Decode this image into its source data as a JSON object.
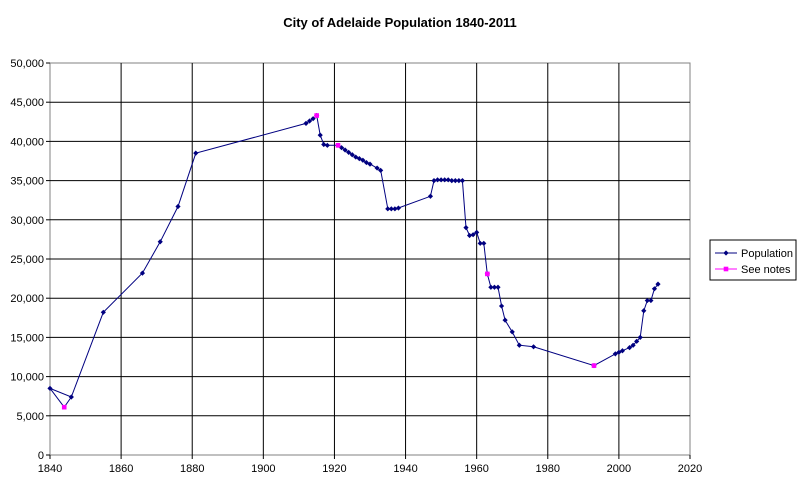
{
  "chart_data": {
    "type": "line",
    "title": "City of Adelaide Population 1840-2011",
    "xlabel": "",
    "ylabel": "",
    "xlim": [
      1840,
      2020
    ],
    "ylim": [
      0,
      50000
    ],
    "x_ticks": [
      1840,
      1860,
      1880,
      1900,
      1920,
      1940,
      1960,
      1980,
      2000,
      2020
    ],
    "x_tick_labels": [
      "1840",
      "1860",
      "1880",
      "1900",
      "1920",
      "1940",
      "1960",
      "1980",
      "2000",
      "2020"
    ],
    "y_ticks": [
      0,
      5000,
      10000,
      15000,
      20000,
      25000,
      30000,
      35000,
      40000,
      45000,
      50000
    ],
    "y_tick_labels": [
      "0",
      "5,000",
      "10,000",
      "15,000",
      "20,000",
      "25,000",
      "30,000",
      "35,000",
      "40,000",
      "45,000",
      "50,000"
    ],
    "grid": true,
    "legend_position": "right",
    "series": [
      {
        "name": "Population",
        "color": "#000080",
        "marker": "diamond",
        "points": [
          [
            1840,
            8500
          ],
          [
            1846,
            7400
          ],
          [
            1855,
            18200
          ],
          [
            1866,
            23200
          ],
          [
            1871,
            27200
          ],
          [
            1876,
            31700
          ],
          [
            1881,
            38500
          ],
          [
            1912,
            42300
          ],
          [
            1913,
            42600
          ],
          [
            1914,
            42900
          ],
          [
            1915,
            43300
          ],
          [
            1916,
            40800
          ],
          [
            1917,
            39600
          ],
          [
            1918,
            39500
          ],
          [
            1921,
            39500
          ],
          [
            1922,
            39200
          ],
          [
            1923,
            38900
          ],
          [
            1924,
            38600
          ],
          [
            1925,
            38300
          ],
          [
            1926,
            38000
          ],
          [
            1927,
            37800
          ],
          [
            1928,
            37600
          ],
          [
            1929,
            37300
          ],
          [
            1930,
            37100
          ],
          [
            1932,
            36600
          ],
          [
            1933,
            36300
          ],
          [
            1935,
            31400
          ],
          [
            1936,
            31400
          ],
          [
            1937,
            31400
          ],
          [
            1938,
            31500
          ],
          [
            1947,
            33000
          ],
          [
            1948,
            35000
          ],
          [
            1949,
            35100
          ],
          [
            1950,
            35100
          ],
          [
            1951,
            35100
          ],
          [
            1952,
            35100
          ],
          [
            1953,
            35000
          ],
          [
            1954,
            35000
          ],
          [
            1955,
            35000
          ],
          [
            1956,
            35000
          ],
          [
            1957,
            29000
          ],
          [
            1958,
            28000
          ],
          [
            1959,
            28100
          ],
          [
            1960,
            28400
          ],
          [
            1961,
            27000
          ],
          [
            1962,
            27000
          ],
          [
            1963,
            23100
          ],
          [
            1964,
            21400
          ],
          [
            1965,
            21400
          ],
          [
            1966,
            21400
          ],
          [
            1967,
            19000
          ],
          [
            1968,
            17200
          ],
          [
            1970,
            15700
          ],
          [
            1972,
            14000
          ],
          [
            1976,
            13800
          ],
          [
            1993,
            11400
          ],
          [
            1999,
            12900
          ],
          [
            2000,
            13100
          ],
          [
            2001,
            13300
          ],
          [
            2003,
            13700
          ],
          [
            2004,
            14000
          ],
          [
            2005,
            14500
          ],
          [
            2006,
            15000
          ],
          [
            2007,
            18400
          ],
          [
            2008,
            19700
          ],
          [
            2009,
            19700
          ],
          [
            2010,
            21200
          ],
          [
            2011,
            21800
          ]
        ]
      },
      {
        "name": "See notes",
        "color": "#ff00ff",
        "marker": "square",
        "points": [
          [
            1844,
            6100
          ],
          [
            1915,
            43300
          ],
          [
            1921,
            39500
          ],
          [
            1963,
            23100
          ],
          [
            1993,
            11400
          ]
        ]
      }
    ]
  }
}
